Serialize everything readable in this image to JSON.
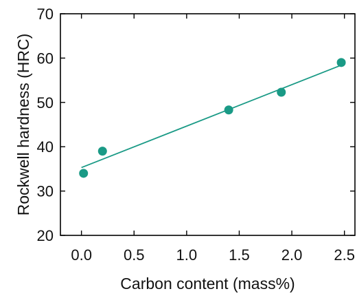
{
  "chart_data": {
    "type": "scatter",
    "xlabel": "Carbon content (mass%)",
    "ylabel": "Rockwell hardness (HRC)",
    "xlim": [
      -0.2,
      2.6
    ],
    "ylim": [
      20,
      70
    ],
    "x_ticks": [
      0.0,
      0.5,
      1.0,
      1.5,
      2.0,
      2.5
    ],
    "x_tick_labels": [
      "0.0",
      "0.5",
      "1.0",
      "1.5",
      "2.0",
      "2.5"
    ],
    "y_ticks": [
      20,
      30,
      40,
      50,
      60,
      70
    ],
    "y_tick_labels": [
      "20",
      "30",
      "40",
      "50",
      "60",
      "70"
    ],
    "grid": false,
    "series": [
      {
        "x": [
          0.02,
          0.2,
          1.4,
          1.9,
          2.47
        ],
        "y": [
          34,
          39,
          48.3,
          52.3,
          59
        ],
        "color": "#1a9a86"
      }
    ],
    "trendline": {
      "x": [
        0.0,
        2.47
      ],
      "y": [
        35.3,
        58.4
      ],
      "color": "#1a9a86"
    }
  }
}
